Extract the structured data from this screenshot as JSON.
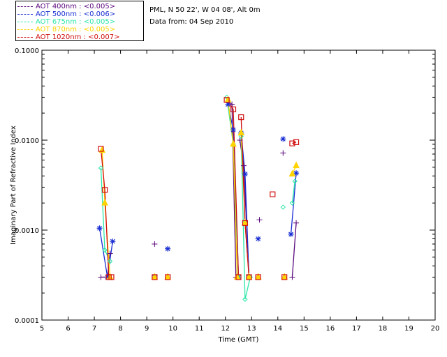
{
  "legend": [
    {
      "label": "AOT  400nm : <0.005>",
      "color": "#5b0a7e"
    },
    {
      "label": "AOT  500nm : <0.006>",
      "color": "#1a2fd4"
    },
    {
      "label": "AOT  675nm : <0.005>",
      "color": "#2ee6a8"
    },
    {
      "label": "AOT  870nm : <0.005>",
      "color": "#ffd400"
    },
    {
      "label": "AOT 1020nm : <0.007>",
      "color": "#d10f0f"
    }
  ],
  "info": {
    "site": "PML, N 50 22', W 04 08', Alt 0m",
    "date": "Data from: 04 Sep 2010"
  },
  "chart_data": {
    "type": "scatter",
    "title": "",
    "xlabel": "Time (GMT)",
    "ylabel": "Imaginary Part of Refractive Index",
    "xlim": [
      5,
      20
    ],
    "ylim": [
      0.0001,
      0.1
    ],
    "yscale": "log",
    "xticks": [
      "5",
      "6",
      "7",
      "8",
      "9",
      "10",
      "11",
      "12",
      "13",
      "14",
      "15",
      "16",
      "17",
      "18",
      "19",
      "20"
    ],
    "yticks": [
      "0.0001",
      "0.0010",
      "0.0100",
      "0.1000"
    ],
    "grid": false,
    "series": [
      {
        "name": "AOT  400nm : <0.005>",
        "color": "#5b0a7e",
        "marker": "plus",
        "segments": [
          [
            [
              7.25,
              0.0003
            ],
            [
              7.5,
              0.0003
            ],
            [
              7.6,
              0.00055
            ]
          ],
          [
            [
              12.1,
              0.027
            ],
            [
              12.25,
              0.025
            ],
            [
              12.4,
              0.0003
            ]
          ],
          [
            [
              12.55,
              0.01
            ],
            [
              12.7,
              0.0052
            ],
            [
              12.9,
              0.0003
            ]
          ],
          [
            [
              14.55,
              0.0003
            ],
            [
              14.7,
              0.0012
            ]
          ]
        ],
        "points": [
          [
            9.3,
            0.0007
          ],
          [
            13.3,
            0.0013
          ],
          [
            14.2,
            0.0072
          ]
        ]
      },
      {
        "name": "AOT  500nm : <0.006>",
        "color": "#1a2fd4",
        "marker": "asterisk",
        "segments": [
          [
            [
              7.2,
              0.00105
            ],
            [
              7.5,
              0.0003
            ],
            [
              7.7,
              0.00075
            ]
          ],
          [
            [
              12.1,
              0.025
            ],
            [
              12.3,
              0.013
            ],
            [
              12.5,
              0.0003
            ]
          ],
          [
            [
              12.6,
              0.012
            ],
            [
              12.75,
              0.0042
            ],
            [
              12.9,
              0.0003
            ]
          ],
          [
            [
              14.5,
              0.0009
            ],
            [
              14.7,
              0.0043
            ]
          ]
        ],
        "points": [
          [
            9.3,
            0.0003
          ],
          [
            9.8,
            0.00062
          ],
          [
            13.25,
            0.0008
          ],
          [
            14.2,
            0.0103
          ]
        ]
      },
      {
        "name": "AOT  675nm : <0.005>",
        "color": "#2ee6a8",
        "marker": "diamond",
        "segments": [
          [
            [
              7.25,
              0.0049
            ],
            [
              7.4,
              0.0006
            ],
            [
              7.6,
              0.00045
            ]
          ],
          [
            [
              12.05,
              0.03
            ],
            [
              12.3,
              0.009
            ],
            [
              12.5,
              0.0003
            ]
          ],
          [
            [
              12.6,
              0.011
            ],
            [
              12.75,
              0.00017
            ],
            [
              12.95,
              0.0003
            ]
          ],
          [
            [
              14.55,
              0.002
            ],
            [
              14.65,
              0.0035
            ]
          ]
        ],
        "points": [
          [
            9.3,
            0.0003
          ],
          [
            14.2,
            0.0018
          ]
        ]
      },
      {
        "name": "AOT  870nm : <0.005>",
        "color": "#ffd400",
        "marker": "triangle",
        "segments": [
          [
            [
              7.3,
              0.0077
            ],
            [
              7.4,
              0.002
            ],
            [
              7.6,
              0.0003
            ]
          ],
          [
            [
              12.1,
              0.028
            ],
            [
              12.3,
              0.009
            ],
            [
              12.45,
              0.0003
            ]
          ],
          [
            [
              12.6,
              0.012
            ],
            [
              12.75,
              0.0012
            ],
            [
              12.9,
              0.0003
            ]
          ],
          [
            [
              14.55,
              0.0042
            ],
            [
              14.7,
              0.0052
            ]
          ]
        ],
        "points": [
          [
            9.3,
            0.0003
          ],
          [
            9.8,
            0.0003
          ],
          [
            13.25,
            0.0003
          ],
          [
            14.25,
            0.0003
          ]
        ]
      },
      {
        "name": "AOT 1020nm : <0.007>",
        "color": "#d10f0f",
        "marker": "square",
        "segments": [
          [
            [
              7.25,
              0.008
            ],
            [
              7.4,
              0.0028
            ],
            [
              7.55,
              0.0003
            ],
            [
              7.65,
              0.0003
            ]
          ],
          [
            [
              12.05,
              0.028
            ],
            [
              12.3,
              0.022
            ],
            [
              12.5,
              0.0003
            ]
          ],
          [
            [
              12.6,
              0.018
            ],
            [
              12.75,
              0.0012
            ],
            [
              12.9,
              0.0003
            ]
          ],
          [
            [
              14.55,
              0.0092
            ],
            [
              14.7,
              0.0095
            ]
          ]
        ],
        "points": [
          [
            9.3,
            0.0003
          ],
          [
            9.8,
            0.0003
          ],
          [
            13.25,
            0.0003
          ],
          [
            13.8,
            0.0025
          ],
          [
            14.25,
            0.0003
          ]
        ]
      }
    ]
  }
}
